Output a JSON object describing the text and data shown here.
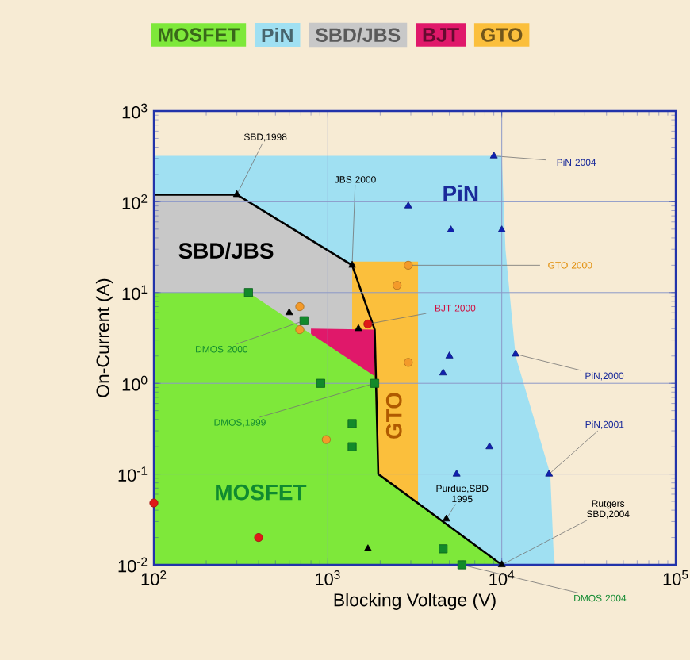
{
  "chart_data": {
    "type": "area",
    "xlabel": "Blocking Voltage (V)",
    "ylabel": "On-Current (A)",
    "log": "xy",
    "grid": true,
    "legend": "top",
    "xlim": [
      100,
      100000
    ],
    "ylim": [
      0.01,
      1000
    ],
    "xticks": [
      {
        "value": 100,
        "label": "10$^{2}$"
      },
      {
        "value": 1000,
        "label": "10$^{3}$"
      },
      {
        "value": 10000,
        "label": "10$^{4}$"
      },
      {
        "value": 100000,
        "label": "10$^{5}$"
      }
    ],
    "yticks": [
      {
        "value": 0.01,
        "label": "10$^{-2}$"
      },
      {
        "value": 0.1,
        "label": "10$^{-1}$"
      },
      {
        "value": 1,
        "label": "10$^{0}$"
      },
      {
        "value": 10,
        "label": "10$^{1}$"
      },
      {
        "value": 100,
        "label": "10$^{2}$"
      },
      {
        "value": 1000,
        "label": "10$^{3}$"
      }
    ],
    "series": [
      {
        "name": "MOSFET",
        "color": "#7ee83a",
        "x": [
          100,
          350,
          1860,
          1950,
          10000
        ],
        "values": [
          10,
          10,
          1.2,
          0.1,
          0.01
        ]
      },
      {
        "name": "PiN",
        "color": "#a0e0f2",
        "x": [
          100,
          10000,
          10500,
          12000,
          19000,
          20000
        ],
        "values": [
          320,
          320,
          30,
          2,
          0.1,
          0.01
        ]
      },
      {
        "name": "SBD/JBS",
        "color": "#c8c8c8",
        "x": [
          100,
          300,
          1380
        ],
        "values": [
          120,
          120,
          20
        ]
      },
      {
        "name": "BJT",
        "color": "#e0186a",
        "x": [
          800,
          1860
        ],
        "values": [
          4,
          3.9
        ]
      },
      {
        "name": "GTO",
        "color": "#fbbf3c",
        "x": [
          1380,
          3300
        ],
        "values": [
          22,
          22
        ]
      },
      {
        "type": "line",
        "color": "#000000",
        "x": [
          100,
          300,
          1380,
          1860,
          1950,
          10000
        ],
        "values": [
          120,
          120,
          20,
          3.9,
          0.1,
          0.01
        ]
      },
      {
        "type": "scatter",
        "marker": "triangle",
        "color": "#1020b0",
        "x": [
          2900,
          9000,
          5100,
          10000,
          5000,
          4600,
          12000,
          8500,
          5500,
          18700
        ],
        "values": [
          90,
          320,
          49,
          49,
          2,
          1.3,
          2.1,
          0.2,
          0.1,
          0.1
        ]
      },
      {
        "type": "scatter",
        "marker": "triangle",
        "color": "#000000",
        "x": [
          300,
          1380,
          600,
          1500,
          1700,
          4800,
          10000
        ],
        "values": [
          120,
          20,
          6,
          4,
          0.015,
          0.032,
          0.01
        ]
      },
      {
        "type": "scatter",
        "marker": "square",
        "color": "#128a2a",
        "x": [
          350,
          730,
          910,
          1860,
          1380,
          1380,
          4600,
          5900
        ],
        "values": [
          10,
          4.9,
          1,
          1,
          0.36,
          0.2,
          0.015,
          0.01
        ]
      },
      {
        "type": "scatter",
        "marker": "circle",
        "color": "#f39a2a",
        "x": [
          2900,
          690,
          690,
          2500,
          2900,
          980
        ],
        "values": [
          20,
          7,
          3.9,
          12,
          1.7,
          0.24
        ]
      },
      {
        "type": "scatter",
        "marker": "circle",
        "color": "#e01818",
        "x": [
          100,
          400,
          1700
        ],
        "values": [
          0.048,
          0.02,
          4.5
        ]
      }
    ],
    "annotations": [
      {
        "text": "SBD,1998",
        "x": 300,
        "y": 120
      },
      {
        "text": "JBS 2000",
        "x": 1380,
        "y": 20
      },
      {
        "text": "PiN 2004",
        "x": 9000,
        "y": 320
      },
      {
        "text": "GTO 2000",
        "x": 2900,
        "y": 20
      },
      {
        "text": "BJT 2000",
        "x": 1700,
        "y": 4.5
      },
      {
        "text": "PiN,2000",
        "x": 12000,
        "y": 2.1
      },
      {
        "text": "PiN,2001",
        "x": 18700,
        "y": 0.1
      },
      {
        "text": "Rutgers SBD,2004",
        "x": 10000,
        "y": 0.01
      },
      {
        "text": "Purdue,SBD 1995",
        "x": 4800,
        "y": 0.032
      },
      {
        "text": "DMOS 2004",
        "x": 5900,
        "y": 0.01
      },
      {
        "text": "DMOS 2000",
        "x": 730,
        "y": 4.9
      },
      {
        "text": "DMOS,1999",
        "x": 1860,
        "y": 1
      },
      "PiN",
      "SBD/JBS",
      "MOSFET",
      "GTO"
    ]
  }
}
